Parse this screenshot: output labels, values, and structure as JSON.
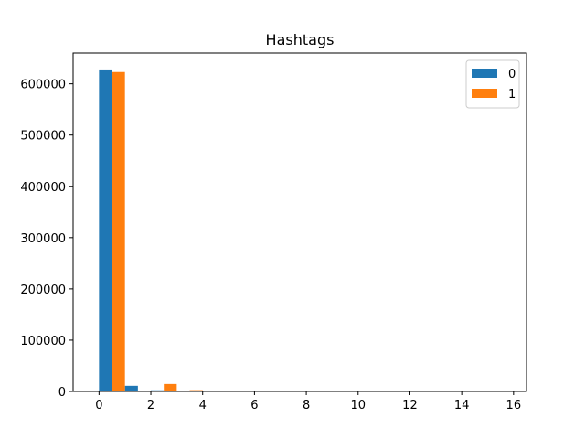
{
  "chart_data": {
    "type": "bar",
    "title": "Hashtags",
    "xlabel": "",
    "ylabel": "",
    "xlim": [
      -1,
      16.5
    ],
    "ylim": [
      0,
      660000
    ],
    "xticks": [
      0,
      2,
      4,
      6,
      8,
      10,
      12,
      14,
      16
    ],
    "yticks": [
      0,
      100000,
      200000,
      300000,
      400000,
      500000,
      600000
    ],
    "bar_width": 0.5,
    "grid": false,
    "legend_position": "top-right",
    "series": [
      {
        "name": "0",
        "color": "#1f77b4",
        "x": [
          0,
          1,
          2,
          3,
          4,
          5,
          6,
          7,
          8,
          9,
          10,
          11,
          12,
          13,
          14,
          15,
          16
        ],
        "values": [
          628000,
          11000,
          2200,
          600,
          200,
          80,
          40,
          20,
          10,
          5,
          3,
          2,
          1,
          1,
          0,
          0,
          0
        ]
      },
      {
        "name": "1",
        "color": "#ff7f0e",
        "x": [
          0,
          1,
          2,
          3,
          4,
          5,
          6,
          7,
          8,
          9,
          10,
          11,
          12,
          13,
          14,
          15,
          16
        ],
        "values": [
          623000,
          900,
          14500,
          2500,
          400,
          150,
          60,
          25,
          12,
          6,
          3,
          2,
          1,
          1,
          0,
          0,
          0
        ]
      }
    ]
  }
}
